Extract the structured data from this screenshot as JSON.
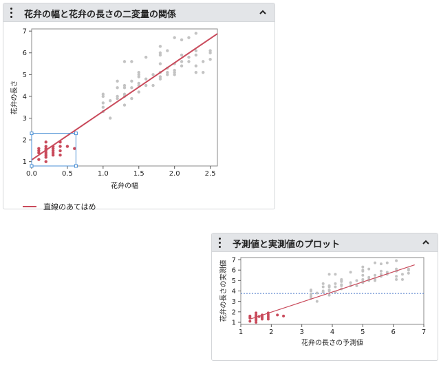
{
  "panels": {
    "scatter": {
      "title": "花弁の幅と花弁の長さの二変量の関係",
      "legend_label": "直線のあてはめ"
    },
    "actual_predicted": {
      "title": "予測値と実測値のプロット"
    }
  },
  "icons": {
    "menu": "vertical-ellipsis-icon",
    "collapse": "chevron-up-icon"
  },
  "colors": {
    "selected_points": "#c94a5b",
    "unselected_points": "#c3c3c3",
    "fit_line": "#c94a5b",
    "mean_line": "#4a78c9",
    "selection_box": "#4a8fd4"
  },
  "chart_data": [
    {
      "type": "scatter",
      "xlabel": "花弁の幅",
      "ylabel": "花弁の長さ",
      "xlim": [
        0,
        2.6
      ],
      "ylim": [
        0.8,
        7.1
      ],
      "xticks": [
        "0.0",
        "0.5",
        "1.0",
        "1.5",
        "2.0",
        "2.5"
      ],
      "yticks": [
        "1",
        "2",
        "3",
        "4",
        "5",
        "6",
        "7"
      ],
      "fit_line": {
        "x": [
          0,
          2.6
        ],
        "y": [
          1.08,
          6.88
        ]
      },
      "selection": {
        "x": [
          0,
          0.62
        ],
        "y": [
          0.8,
          2.3
        ]
      },
      "series": [
        {
          "name": "selected",
          "points": [
            [
              0.1,
              1.4
            ],
            [
              0.1,
              1.5
            ],
            [
              0.1,
              1.1
            ],
            [
              0.1,
              1.6
            ],
            [
              0.2,
              1.4
            ],
            [
              0.2,
              1.3
            ],
            [
              0.2,
              1.5
            ],
            [
              0.2,
              1.7
            ],
            [
              0.2,
              1.2
            ],
            [
              0.2,
              1.0
            ],
            [
              0.2,
              1.6
            ],
            [
              0.2,
              1.9
            ],
            [
              0.3,
              1.4
            ],
            [
              0.3,
              1.5
            ],
            [
              0.3,
              1.7
            ],
            [
              0.3,
              1.3
            ],
            [
              0.4,
              1.5
            ],
            [
              0.4,
              1.7
            ],
            [
              0.4,
              1.9
            ],
            [
              0.4,
              1.3
            ],
            [
              0.5,
              1.7
            ],
            [
              0.6,
              1.6
            ],
            [
              0.2,
              1.55
            ],
            [
              0.3,
              1.6
            ]
          ]
        },
        {
          "name": "unselected",
          "points": [
            [
              1.0,
              3.5
            ],
            [
              1.0,
              3.3
            ],
            [
              1.0,
              4.0
            ],
            [
              1.0,
              3.7
            ],
            [
              1.0,
              4.1
            ],
            [
              1.1,
              3.0
            ],
            [
              1.1,
              3.8
            ],
            [
              1.2,
              4.0
            ],
            [
              1.2,
              4.4
            ],
            [
              1.2,
              4.7
            ],
            [
              1.2,
              3.9
            ],
            [
              1.3,
              4.0
            ],
            [
              1.3,
              4.4
            ],
            [
              1.3,
              4.5
            ],
            [
              1.3,
              4.1
            ],
            [
              1.3,
              3.6
            ],
            [
              1.3,
              5.6
            ],
            [
              1.4,
              4.4
            ],
            [
              1.4,
              4.7
            ],
            [
              1.4,
              3.9
            ],
            [
              1.4,
              5.6
            ],
            [
              1.5,
              4.5
            ],
            [
              1.5,
              4.9
            ],
            [
              1.5,
              4.6
            ],
            [
              1.5,
              5.0
            ],
            [
              1.5,
              4.2
            ],
            [
              1.5,
              5.1
            ],
            [
              1.6,
              4.5
            ],
            [
              1.6,
              5.8
            ],
            [
              1.6,
              4.8
            ],
            [
              1.7,
              5.0
            ],
            [
              1.7,
              4.5
            ],
            [
              1.8,
              4.8
            ],
            [
              1.8,
              5.1
            ],
            [
              1.8,
              5.5
            ],
            [
              1.8,
              6.3
            ],
            [
              1.8,
              6.0
            ],
            [
              1.8,
              4.9
            ],
            [
              1.8,
              5.9
            ],
            [
              1.9,
              5.0
            ],
            [
              1.9,
              5.1
            ],
            [
              1.9,
              5.3
            ],
            [
              1.9,
              6.1
            ],
            [
              2.0,
              5.0
            ],
            [
              2.0,
              5.1
            ],
            [
              2.0,
              5.5
            ],
            [
              2.0,
              6.7
            ],
            [
              2.0,
              5.2
            ],
            [
              2.1,
              5.4
            ],
            [
              2.1,
              5.6
            ],
            [
              2.1,
              5.9
            ],
            [
              2.1,
              6.6
            ],
            [
              2.2,
              5.6
            ],
            [
              2.2,
              5.8
            ],
            [
              2.2,
              6.7
            ],
            [
              2.3,
              5.1
            ],
            [
              2.3,
              5.4
            ],
            [
              2.3,
              6.1
            ],
            [
              2.3,
              6.9
            ],
            [
              2.3,
              5.9
            ],
            [
              2.4,
              5.1
            ],
            [
              2.4,
              5.6
            ],
            [
              2.5,
              5.7
            ],
            [
              2.5,
              6.1
            ],
            [
              2.5,
              6.0
            ]
          ]
        }
      ]
    },
    {
      "type": "scatter",
      "xlabel": "花弁の長さの予測値",
      "ylabel": "花弁の長さの実測値",
      "xlim": [
        1,
        7
      ],
      "ylim": [
        0.8,
        7.2
      ],
      "xticks": [
        "1",
        "2",
        "3",
        "4",
        "5",
        "6",
        "7"
      ],
      "yticks": [
        "1",
        "2",
        "3",
        "4",
        "5",
        "6",
        "7"
      ],
      "mean_line_y": 3.76,
      "fit_line": {
        "x": [
          1.3,
          6.7
        ],
        "y": [
          1.3,
          6.5
        ]
      },
      "series": [
        {
          "name": "selected",
          "points": [
            [
              1.3,
              1.4
            ],
            [
              1.3,
              1.5
            ],
            [
              1.3,
              1.1
            ],
            [
              1.3,
              1.6
            ],
            [
              1.5,
              1.4
            ],
            [
              1.5,
              1.3
            ],
            [
              1.5,
              1.5
            ],
            [
              1.5,
              1.7
            ],
            [
              1.5,
              1.2
            ],
            [
              1.5,
              1.0
            ],
            [
              1.5,
              1.6
            ],
            [
              1.5,
              1.9
            ],
            [
              1.7,
              1.4
            ],
            [
              1.7,
              1.5
            ],
            [
              1.7,
              1.7
            ],
            [
              1.7,
              1.3
            ],
            [
              1.9,
              1.5
            ],
            [
              1.9,
              1.7
            ],
            [
              1.9,
              1.9
            ],
            [
              1.9,
              1.3
            ],
            [
              2.2,
              1.7
            ],
            [
              2.4,
              1.6
            ],
            [
              1.6,
              1.55
            ],
            [
              1.7,
              1.6
            ]
          ]
        },
        {
          "name": "unselected",
          "points": [
            [
              3.3,
              3.5
            ],
            [
              3.3,
              3.3
            ],
            [
              3.3,
              4.0
            ],
            [
              3.3,
              3.7
            ],
            [
              3.3,
              4.1
            ],
            [
              3.5,
              3.0
            ],
            [
              3.5,
              3.8
            ],
            [
              3.7,
              4.0
            ],
            [
              3.7,
              4.4
            ],
            [
              3.7,
              4.7
            ],
            [
              3.7,
              3.9
            ],
            [
              3.9,
              4.0
            ],
            [
              3.9,
              4.4
            ],
            [
              3.9,
              4.5
            ],
            [
              3.9,
              4.1
            ],
            [
              3.9,
              3.6
            ],
            [
              3.9,
              5.6
            ],
            [
              4.1,
              4.4
            ],
            [
              4.1,
              4.7
            ],
            [
              4.1,
              3.9
            ],
            [
              4.1,
              5.6
            ],
            [
              4.3,
              4.5
            ],
            [
              4.3,
              4.9
            ],
            [
              4.3,
              4.6
            ],
            [
              4.3,
              5.0
            ],
            [
              4.3,
              4.2
            ],
            [
              4.3,
              5.1
            ],
            [
              4.6,
              4.5
            ],
            [
              4.6,
              5.8
            ],
            [
              4.6,
              4.8
            ],
            [
              4.8,
              5.0
            ],
            [
              4.8,
              4.5
            ],
            [
              5.0,
              4.8
            ],
            [
              5.0,
              5.1
            ],
            [
              5.0,
              5.5
            ],
            [
              5.0,
              6.3
            ],
            [
              5.0,
              6.0
            ],
            [
              5.0,
              4.9
            ],
            [
              5.0,
              5.9
            ],
            [
              5.2,
              5.0
            ],
            [
              5.2,
              5.1
            ],
            [
              5.2,
              5.3
            ],
            [
              5.2,
              6.1
            ],
            [
              5.4,
              5.0
            ],
            [
              5.4,
              5.1
            ],
            [
              5.4,
              5.5
            ],
            [
              5.4,
              6.7
            ],
            [
              5.4,
              5.2
            ],
            [
              5.6,
              5.4
            ],
            [
              5.6,
              5.6
            ],
            [
              5.6,
              5.9
            ],
            [
              5.6,
              6.6
            ],
            [
              5.8,
              5.6
            ],
            [
              5.8,
              5.8
            ],
            [
              5.8,
              6.7
            ],
            [
              6.1,
              5.1
            ],
            [
              6.1,
              5.4
            ],
            [
              6.1,
              6.1
            ],
            [
              6.1,
              6.9
            ],
            [
              6.1,
              5.9
            ],
            [
              6.3,
              5.1
            ],
            [
              6.3,
              5.6
            ],
            [
              6.5,
              5.7
            ],
            [
              6.5,
              6.1
            ],
            [
              6.5,
              6.0
            ]
          ]
        }
      ]
    }
  ]
}
